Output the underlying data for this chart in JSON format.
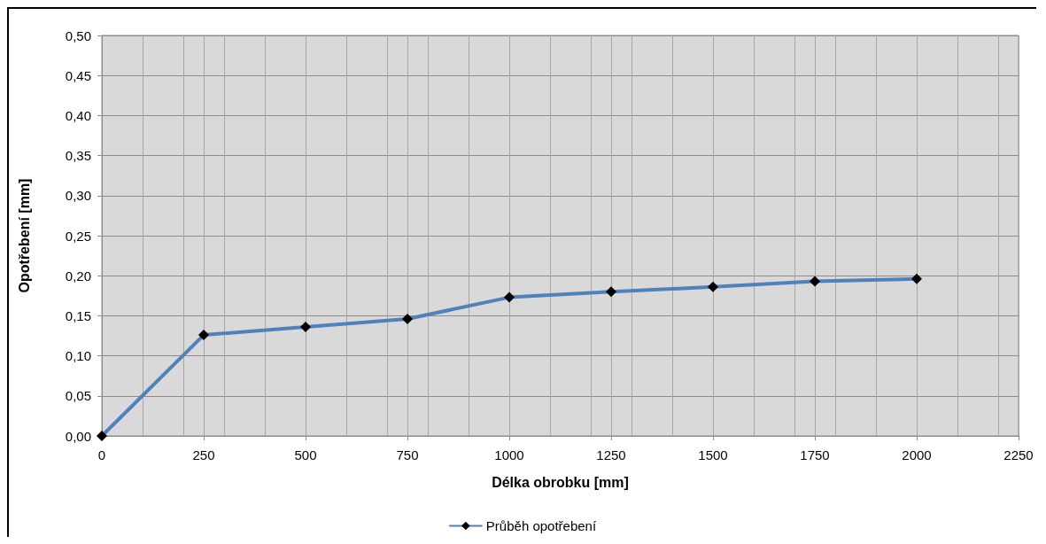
{
  "chart_data": {
    "type": "line",
    "xlabel": "Délka obrobku [mm]",
    "ylabel": "Opotřebení [mm]",
    "x": [
      0,
      250,
      500,
      750,
      1000,
      1250,
      1500,
      1750,
      2000
    ],
    "series": [
      {
        "name": "Průběh opotřebení",
        "color": "#4f81bd",
        "values": [
          0,
          0.126,
          0.136,
          0.146,
          0.173,
          0.18,
          0.186,
          0.193,
          0.196
        ]
      }
    ],
    "xlim": [
      0,
      2250
    ],
    "xticks": [
      0,
      250,
      500,
      750,
      1000,
      1250,
      1500,
      1750,
      2000,
      2250
    ],
    "ylim": [
      0,
      0.5
    ],
    "yticks": [
      {
        "value": 0,
        "label": "0,00"
      },
      {
        "value": 0.05,
        "label": "0,05"
      },
      {
        "value": 0.1,
        "label": "0,10"
      },
      {
        "value": 0.15,
        "label": "0,15"
      },
      {
        "value": 0.2,
        "label": "0,20"
      },
      {
        "value": 0.25,
        "label": "0,25"
      },
      {
        "value": 0.3,
        "label": "0,30"
      },
      {
        "value": 0.35,
        "label": "0,35"
      },
      {
        "value": 0.4,
        "label": "0,40"
      },
      {
        "value": 0.45,
        "label": "0,45"
      },
      {
        "value": 0.5,
        "label": "0,50"
      }
    ],
    "grid": true,
    "legend": "bottom",
    "marker": "diamond",
    "line_style": "solid"
  }
}
